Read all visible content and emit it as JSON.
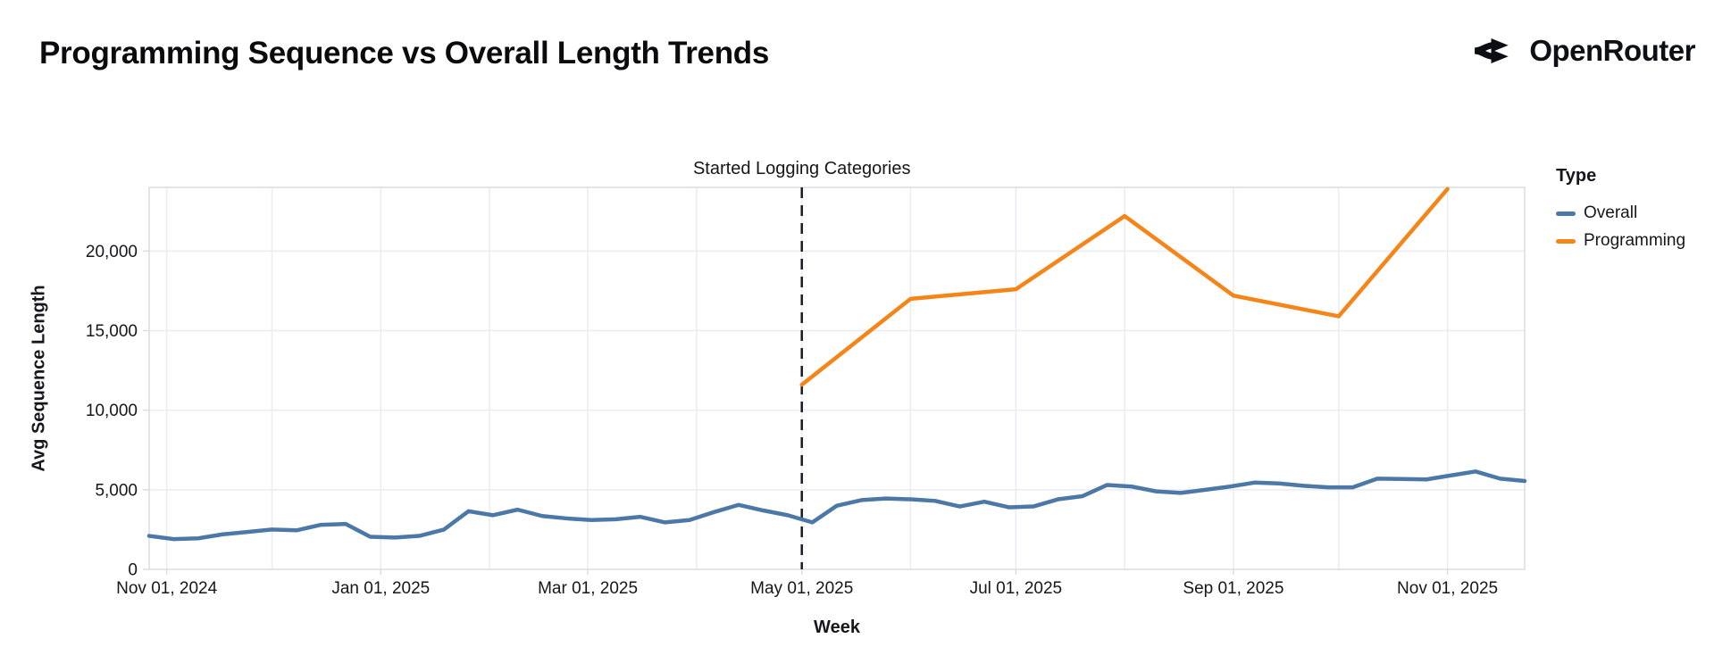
{
  "header": {
    "title": "Programming Sequence vs Overall Length Trends",
    "brand": "OpenRouter"
  },
  "chart_data": {
    "type": "line",
    "title": "Programming Sequence vs Overall Length Trends",
    "x_axis_title": "Week",
    "y_axis_title": "Avg Sequence Length",
    "legend_title": "Type",
    "legend_position": "right",
    "grid": true,
    "x_domain": [
      "2024-10-27",
      "2025-11-23"
    ],
    "ylim": [
      0,
      24000
    ],
    "y_ticks": [
      {
        "value": 0,
        "label": "0"
      },
      {
        "value": 5000,
        "label": "5,000"
      },
      {
        "value": 10000,
        "label": "10,000"
      },
      {
        "value": 15000,
        "label": "15,000"
      },
      {
        "value": 20000,
        "label": "20,000"
      }
    ],
    "x_ticks": [
      {
        "date": "2024-11-01",
        "label": "Nov 01, 2024"
      },
      {
        "date": "2025-01-01",
        "label": "Jan 01, 2025"
      },
      {
        "date": "2025-03-01",
        "label": "Mar 01, 2025"
      },
      {
        "date": "2025-05-01",
        "label": "May 01, 2025"
      },
      {
        "date": "2025-07-01",
        "label": "Jul 01, 2025"
      },
      {
        "date": "2025-09-01",
        "label": "Sep 01, 2025"
      },
      {
        "date": "2025-11-01",
        "label": "Nov 01, 2025"
      }
    ],
    "month_gridlines": [
      "2024-11-01",
      "2024-12-01",
      "2025-01-01",
      "2025-02-01",
      "2025-03-01",
      "2025-04-01",
      "2025-05-01",
      "2025-06-01",
      "2025-07-01",
      "2025-08-01",
      "2025-09-01",
      "2025-10-01",
      "2025-11-01"
    ],
    "annotation": {
      "label": "Started Logging Categories",
      "date": "2025-05-01"
    },
    "colors": {
      "overall": "#4c78a8",
      "programming": "#f58518",
      "grid": "#ebebf2",
      "border": "#dcdce5",
      "rule": "#1b1b24",
      "text": "#16161d"
    },
    "series": [
      {
        "name": "Overall",
        "color": "#4c78a8",
        "start": "2024-10-27",
        "interval_days": 7,
        "values": [
          2100,
          1900,
          1950,
          2200,
          2350,
          2500,
          2450,
          2800,
          2850,
          2050,
          2000,
          2100,
          2500,
          3650,
          3400,
          3750,
          3350,
          3200,
          3100,
          3150,
          3300,
          2950,
          3100,
          3600,
          4050,
          3700,
          3400,
          2950,
          4000,
          4350,
          4450,
          4400,
          4300,
          3950,
          4250,
          3900,
          3950,
          4400,
          4600,
          5300,
          5200,
          4900,
          4800,
          5000,
          5200,
          5450,
          5400,
          5250,
          5150,
          5150,
          5700,
          5680,
          5650,
          5900,
          6150,
          5700,
          5550
        ]
      },
      {
        "name": "Programming",
        "color": "#f58518",
        "dates": [
          "2025-05-01",
          "2025-06-01",
          "2025-07-01",
          "2025-08-01",
          "2025-09-01",
          "2025-10-01",
          "2025-11-01"
        ],
        "values": [
          11600,
          17000,
          17600,
          22200,
          17200,
          15900,
          23900
        ]
      }
    ]
  }
}
